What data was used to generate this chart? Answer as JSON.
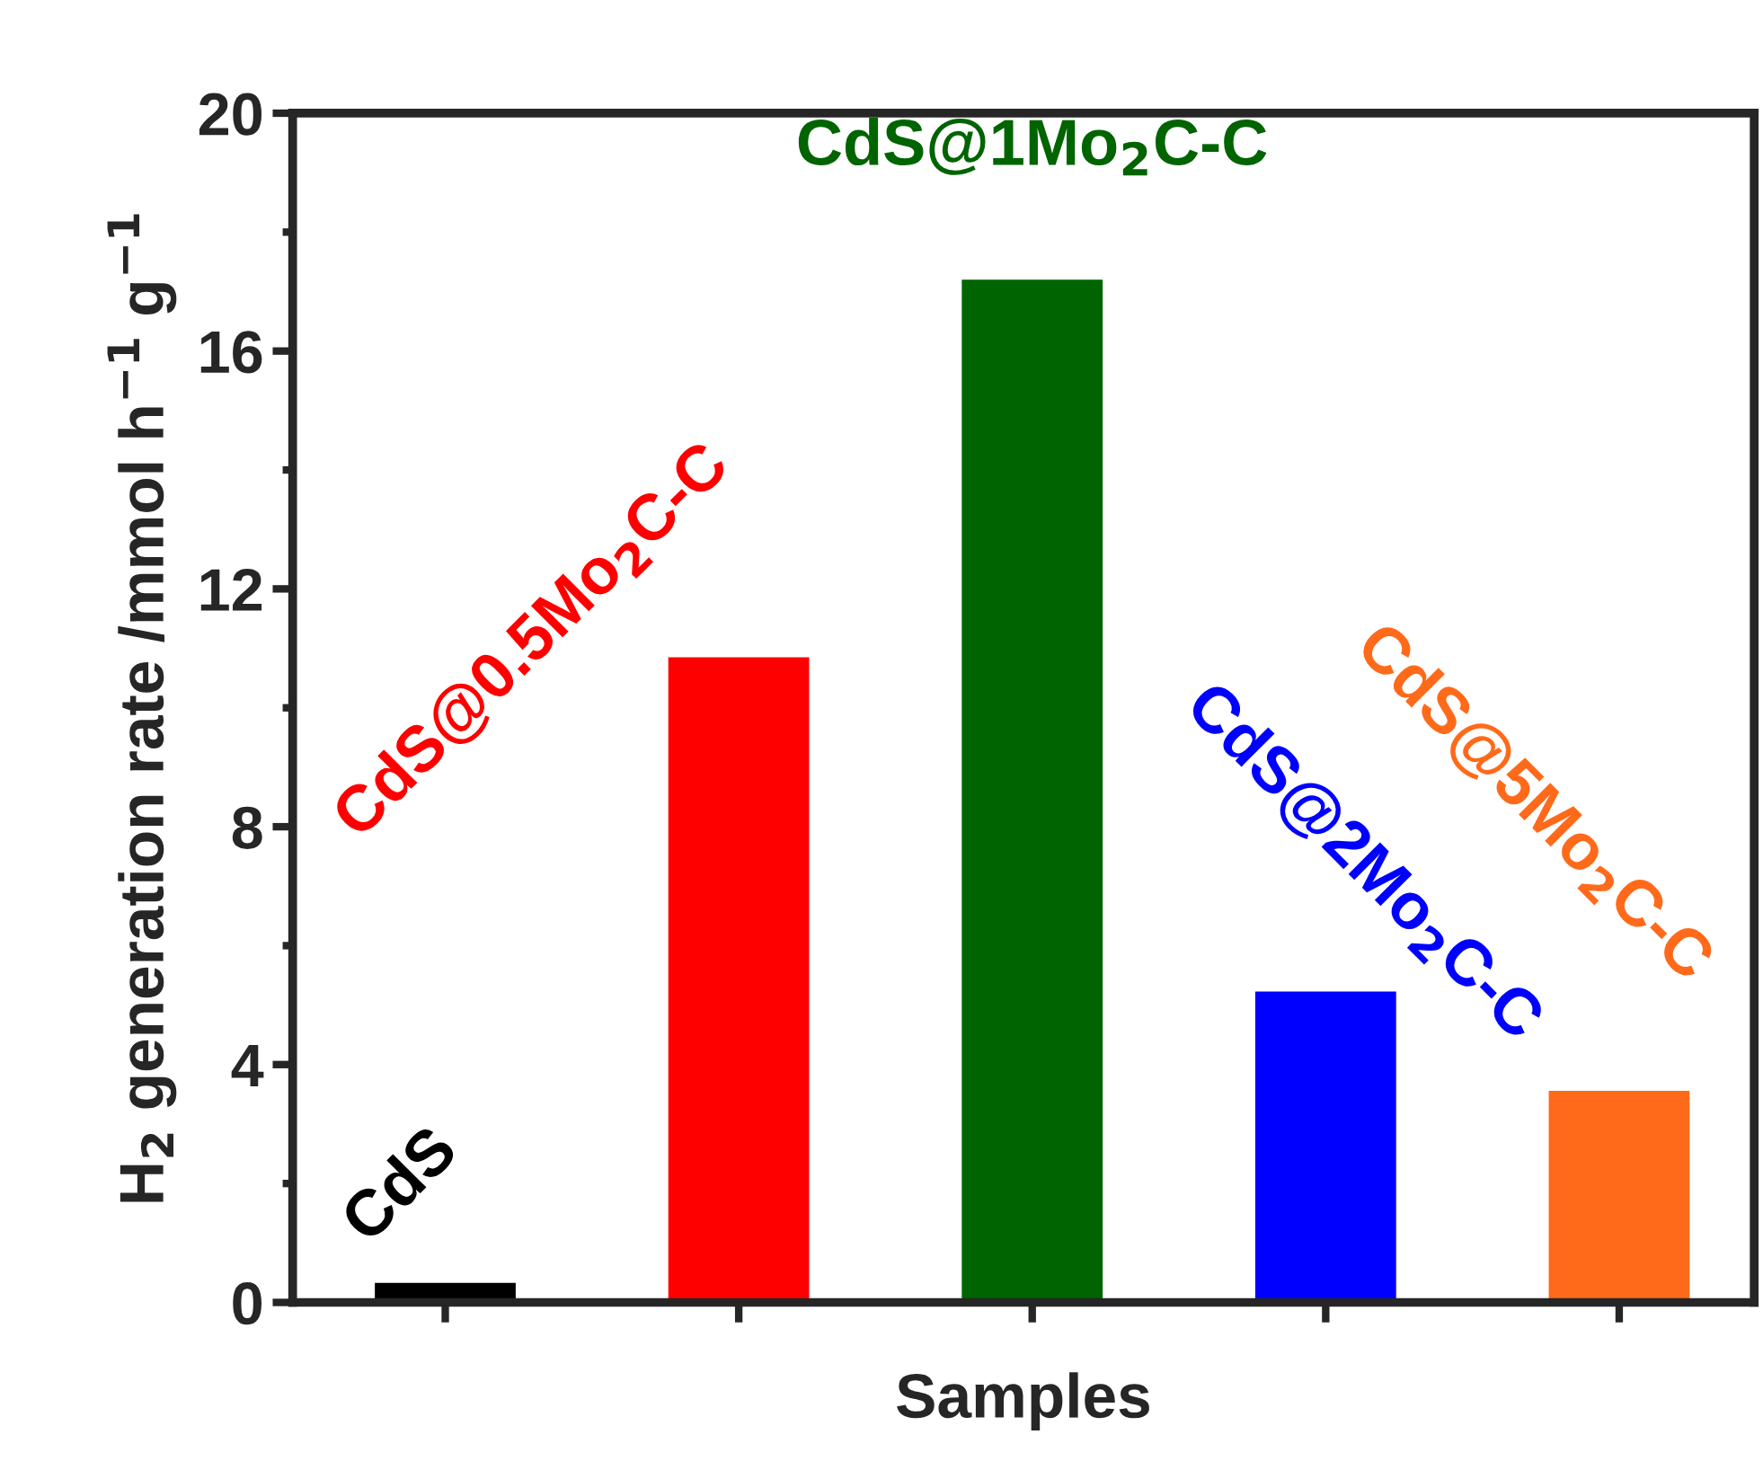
{
  "chart_data": {
    "type": "bar",
    "categories": [
      null,
      null,
      null,
      null,
      null
    ],
    "annotations": [
      "CdS",
      "CdS@0.5Mo$_{2}$C-C",
      "CdS@1Mo$_{2}$C-C",
      "CdS@2Mo$_{2}$C-C",
      "CdS@5Mo$_{2}$C-C"
    ],
    "values": [
      0.33,
      10.85,
      17.2,
      5.23,
      3.56
    ],
    "colors": [
      "#000000",
      "#ff0000",
      "#006400",
      "#0000ff",
      "#ff6a1a"
    ],
    "xlabel": "Samples",
    "ylabel": "H$_{2}$ generation rate /mmol h$^{−1}$ g$^{−1}$",
    "ylim": [
      0,
      20
    ],
    "yticks": [
      0,
      4,
      8,
      12,
      16,
      20
    ],
    "tick_labels": "y",
    "grid": false,
    "legend": false
  }
}
